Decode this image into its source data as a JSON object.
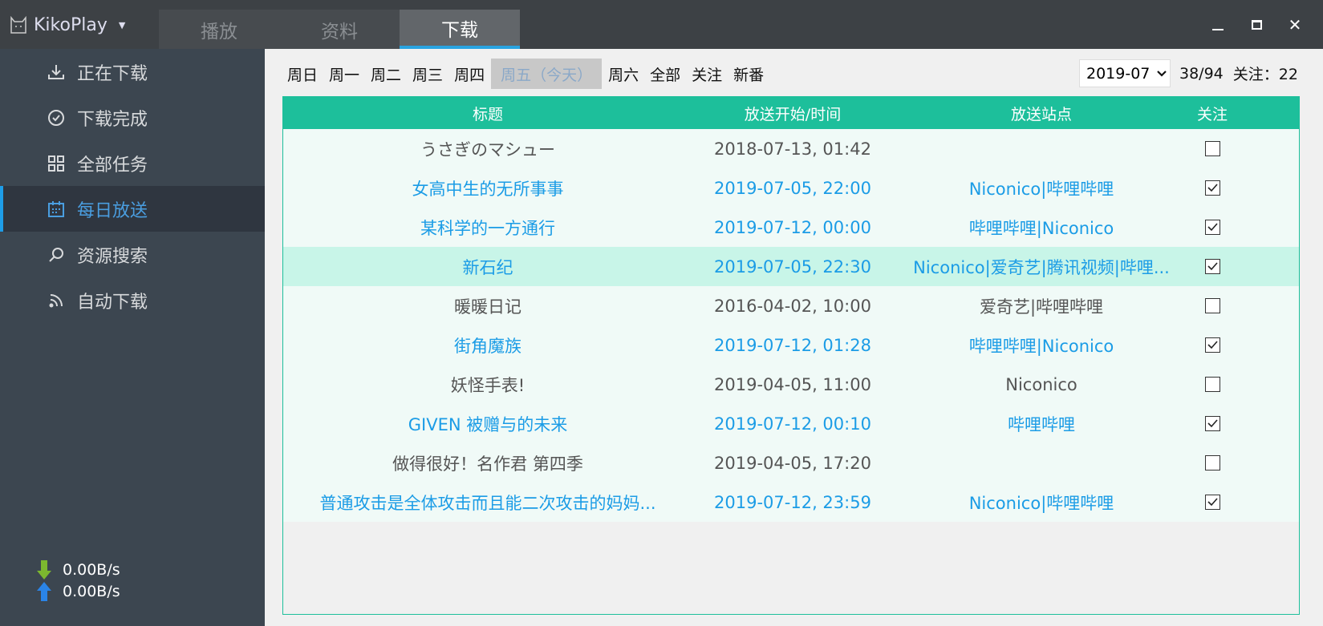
{
  "app": {
    "name": "KikoPlay",
    "icon": "cat-icon"
  },
  "tabs": [
    {
      "label": "播放"
    },
    {
      "label": "资料"
    },
    {
      "label": "下载",
      "active": true
    }
  ],
  "sidebar": {
    "items": [
      {
        "label": "正在下载",
        "icon": "download-icon"
      },
      {
        "label": "下载完成",
        "icon": "check-circle-icon"
      },
      {
        "label": "全部任务",
        "icon": "grid-icon"
      },
      {
        "label": "每日放送",
        "icon": "calendar-icon",
        "active": true
      },
      {
        "label": "资源搜索",
        "icon": "search-icon"
      },
      {
        "label": "自动下载",
        "icon": "rss-icon"
      }
    ],
    "download_speed": "0.00B/s",
    "upload_speed": "0.00B/s"
  },
  "days": [
    "周日",
    "周一",
    "周二",
    "周三",
    "周四",
    "周五（今天）",
    "周六",
    "全部",
    "关注",
    "新番"
  ],
  "today_index": 5,
  "month": "2019-07",
  "count": "38/94",
  "follow_count": "关注：22",
  "colors": {
    "accent": "#1dbf9b",
    "followed_text": "#1b9ce6",
    "highlight_row": "#c8f5e8",
    "active_tab_underline": "#29a3e0"
  },
  "table": {
    "headers": [
      "标题",
      "放送开始/时间",
      "放送站点",
      "关注"
    ],
    "rows": [
      {
        "title": "うさぎのマシュー",
        "time": "2018-07-13, 01:42",
        "sites": "",
        "followed": false
      },
      {
        "title": "女高中生的无所事事",
        "time": "2019-07-05, 22:00",
        "sites": "Niconico|哔哩哔哩",
        "followed": true
      },
      {
        "title": "某科学的一方通行",
        "time": "2019-07-12, 00:00",
        "sites": "哔哩哔哩|Niconico",
        "followed": true
      },
      {
        "title": "新石纪",
        "time": "2019-07-05, 22:30",
        "sites": "Niconico|爱奇艺|腾讯视频|哔哩...",
        "followed": true,
        "highlighted": true
      },
      {
        "title": "暖暖日记",
        "time": "2016-04-02, 10:00",
        "sites": "爱奇艺|哔哩哔哩",
        "followed": false
      },
      {
        "title": "街角魔族",
        "time": "2019-07-12, 01:28",
        "sites": "哔哩哔哩|Niconico",
        "followed": true
      },
      {
        "title": "妖怪手表!",
        "time": "2019-04-05, 11:00",
        "sites": "Niconico",
        "followed": false
      },
      {
        "title": "GIVEN 被赠与的未来",
        "time": "2019-07-12, 00:10",
        "sites": "哔哩哔哩",
        "followed": true
      },
      {
        "title": "做得很好！名作君 第四季",
        "time": "2019-04-05, 17:20",
        "sites": "",
        "followed": false
      },
      {
        "title": "普通攻击是全体攻击而且能二次攻击的妈妈...",
        "time": "2019-07-12, 23:59",
        "sites": "Niconico|哔哩哔哩",
        "followed": true
      }
    ]
  }
}
